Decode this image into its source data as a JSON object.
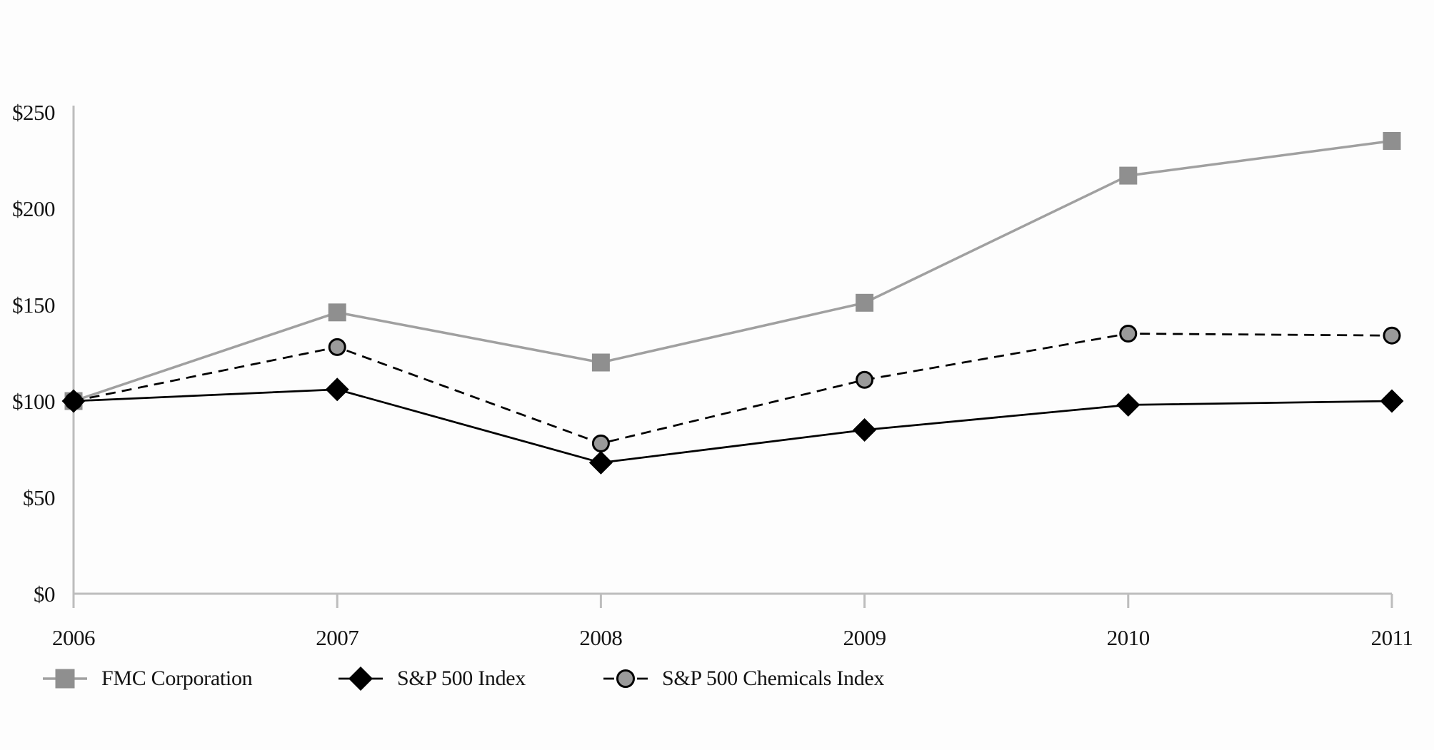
{
  "chart_data": {
    "type": "line",
    "title": "",
    "xlabel": "",
    "ylabel": "",
    "categories": [
      "2006",
      "2007",
      "2008",
      "2009",
      "2010",
      "2011"
    ],
    "yticks": [
      0,
      50,
      100,
      150,
      200,
      250
    ],
    "ytick_labels": [
      "$0",
      "$50",
      "$100",
      "$150",
      "$200",
      "$250"
    ],
    "ylim": [
      0,
      250
    ],
    "grid": false,
    "legend_position": "bottom-left",
    "series": [
      {
        "name": "FMC Corporation",
        "values": [
          100,
          146,
          120,
          151,
          217,
          235
        ],
        "line": "solid",
        "marker": "square",
        "color": "#a0a0a0",
        "marker_fill": "#8f8f8f",
        "marker_stroke": "none"
      },
      {
        "name": "S&P 500 Chemicals Index",
        "values": [
          100,
          128,
          78,
          111,
          135,
          134
        ],
        "line": "dashed",
        "marker": "circle",
        "color": "#000000",
        "marker_fill": "#9a9a9a",
        "marker_stroke": "#000000"
      },
      {
        "name": "S&P 500 Index",
        "values": [
          100,
          106,
          68,
          85,
          98,
          100
        ],
        "line": "solid",
        "marker": "diamond",
        "color": "#000000",
        "marker_fill": "#000000",
        "marker_stroke": "none"
      }
    ],
    "legend_order": [
      0,
      2,
      1
    ]
  },
  "colors": {
    "axis": "#bdbdbd",
    "background": "#fdfdfd",
    "text": "#141414"
  }
}
